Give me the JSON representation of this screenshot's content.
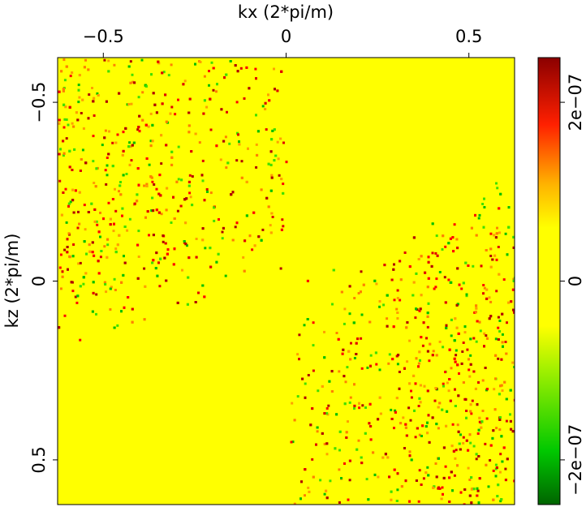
{
  "chart_data": {
    "type": "heatmap",
    "xlabel": "kx (2*pi/m)",
    "ylabel": "kz (2*pi/m)",
    "xlim": [
      -0.625,
      0.625
    ],
    "ylim": [
      -0.625,
      0.625
    ],
    "xticks": [
      {
        "value": -0.5,
        "label": "−0.5"
      },
      0,
      0.5
    ],
    "yticks": [
      {
        "value": -0.5,
        "label": "−0.5"
      },
      0,
      0.5
    ],
    "clim": [
      -2.5e-07,
      2.5e-07
    ],
    "cticks": [
      {
        "value": -2e-07,
        "label": "−2e−07"
      },
      0,
      {
        "value": 2e-07,
        "label": "2e−07"
      }
    ]
  }
}
